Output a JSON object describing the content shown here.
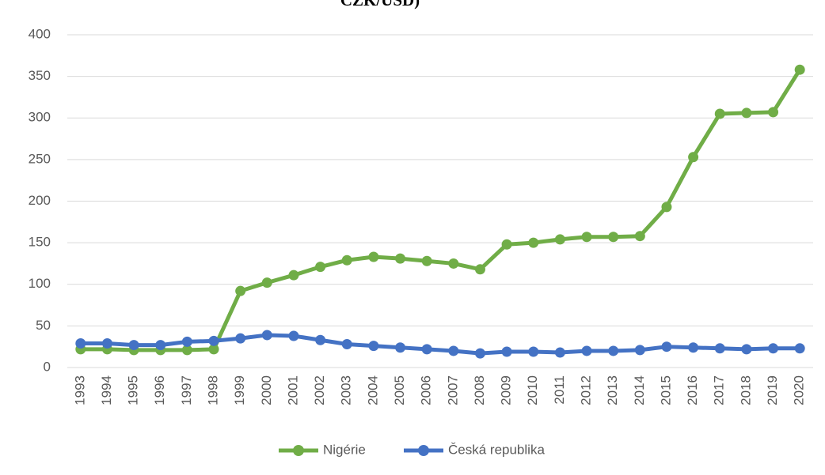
{
  "chart_data": {
    "type": "line",
    "title": "CZK/USD)",
    "categories": [
      "1993",
      "1994",
      "1995",
      "1996",
      "1997",
      "1998",
      "1999",
      "2000",
      "2001",
      "2002",
      "2003",
      "2004",
      "2005",
      "2006",
      "2007",
      "2008",
      "2009",
      "2010",
      "2011",
      "2012",
      "2013",
      "2014",
      "2015",
      "2016",
      "2017",
      "2018",
      "2019",
      "2020"
    ],
    "series": [
      {
        "name": "Nigérie",
        "color": "#70ad47",
        "values": [
          22,
          22,
          21,
          21,
          21,
          22,
          92,
          102,
          111,
          121,
          129,
          133,
          131,
          128,
          125,
          118,
          148,
          150,
          154,
          157,
          157,
          158,
          193,
          253,
          305,
          306,
          307,
          358
        ]
      },
      {
        "name": "Česká republika",
        "color": "#4472c4",
        "values": [
          29,
          29,
          27,
          27,
          31,
          32,
          35,
          39,
          38,
          33,
          28,
          26,
          24,
          22,
          20,
          17,
          19,
          19,
          18,
          20,
          20,
          21,
          25,
          24,
          23,
          22,
          23,
          23
        ]
      }
    ],
    "ylim": [
      0,
      400
    ],
    "yticks": [
      0,
      50,
      100,
      150,
      200,
      250,
      300,
      350,
      400
    ],
    "grid": true,
    "legend": "bottom"
  }
}
